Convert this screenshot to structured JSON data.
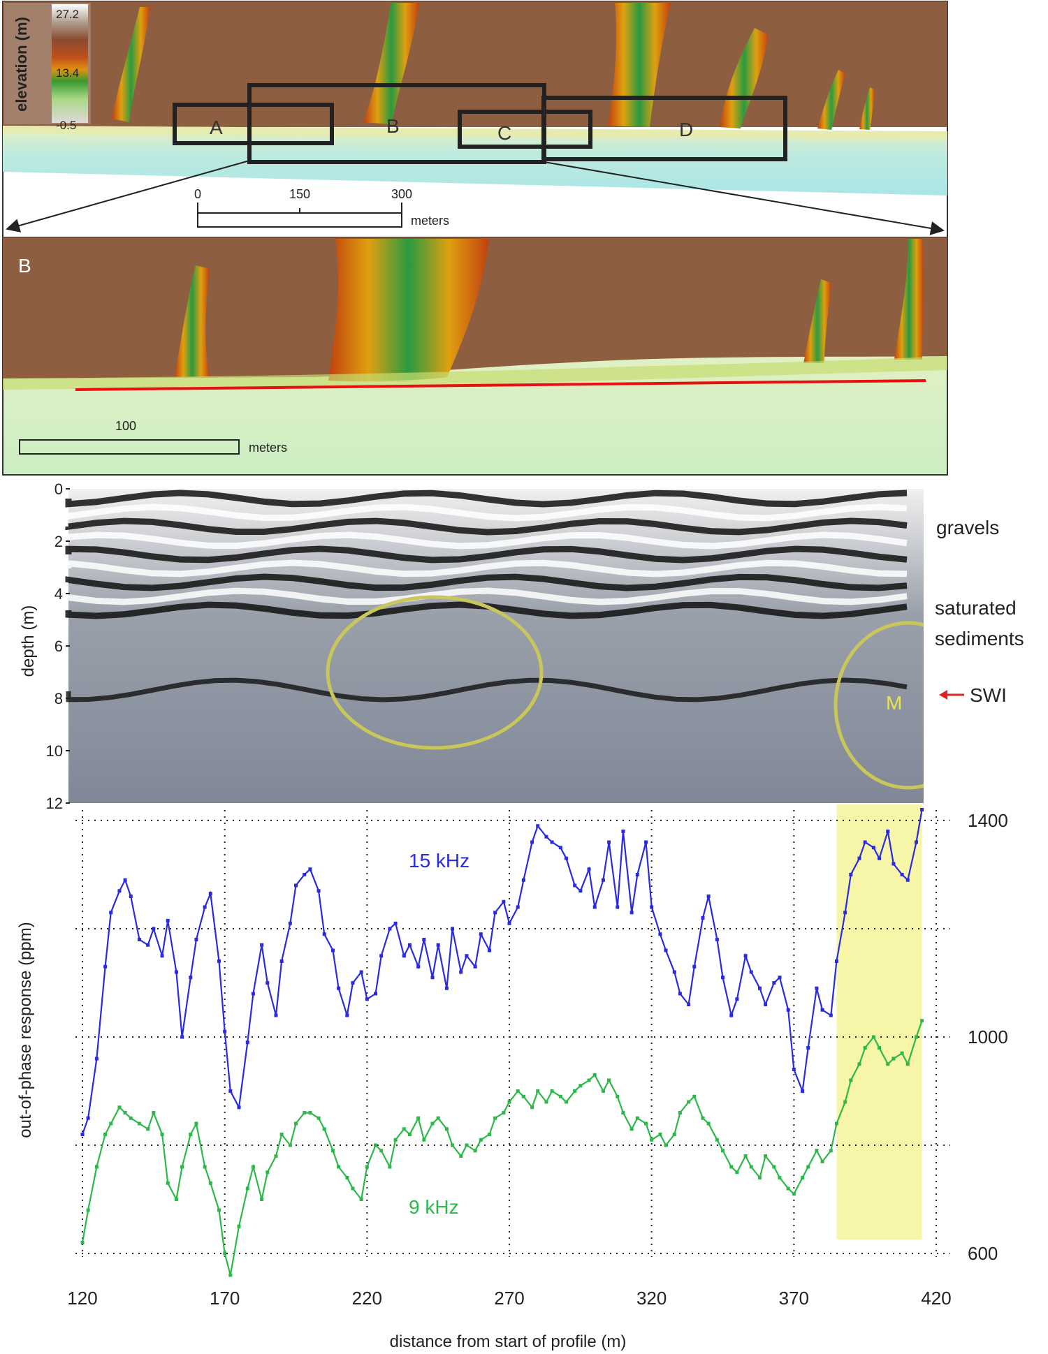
{
  "map_panel": {
    "colorbar": {
      "title": "elevation (m)",
      "max": "27.2",
      "mid": "13.4",
      "min": "-0.5"
    },
    "boxes": [
      "A",
      "B",
      "C",
      "D"
    ],
    "scalebar": {
      "ticks": [
        "0",
        "150",
        "300"
      ],
      "unit": "meters"
    }
  },
  "zoom_panel": {
    "label": "B",
    "scalebar": {
      "tick": "100",
      "unit": "meters"
    }
  },
  "gpr_panel": {
    "ylabel": "depth (m)",
    "yticks": [
      "0",
      "2",
      "4",
      "6",
      "8",
      "10",
      "12"
    ],
    "annotations": {
      "gravels": "gravels",
      "saturated_1": "saturated",
      "saturated_2": "sediments",
      "swi": "SWI",
      "marker": "M"
    }
  },
  "colors": {
    "series_15khz": "#2a2ae0",
    "series_9khz": "#2eb84a",
    "highlight": "#f6f5a8",
    "ellipse": "#c9c65a",
    "swi_arrow": "#e02020"
  },
  "chart_data": {
    "type": "line",
    "xlabel": "distance from start of profile (m)",
    "ylabel": "out-of-phase response (ppm)",
    "xlim": [
      120,
      420
    ],
    "ylim": [
      600,
      1400
    ],
    "xticks": [
      120,
      170,
      220,
      270,
      320,
      370,
      420
    ],
    "yticks": [
      600,
      1000,
      1400
    ],
    "grid": true,
    "highlight_x": [
      385,
      415
    ],
    "series": [
      {
        "name": "15 kHz",
        "x": [
          120,
          122,
          125,
          128,
          130,
          133,
          135,
          137,
          140,
          143,
          145,
          148,
          150,
          153,
          155,
          158,
          160,
          163,
          165,
          168,
          170,
          172,
          175,
          178,
          180,
          183,
          185,
          188,
          190,
          193,
          195,
          198,
          200,
          203,
          205,
          208,
          210,
          213,
          215,
          218,
          220,
          223,
          225,
          228,
          230,
          233,
          235,
          238,
          240,
          243,
          245,
          248,
          250,
          253,
          255,
          258,
          260,
          263,
          265,
          268,
          270,
          273,
          275,
          278,
          280,
          283,
          285,
          288,
          290,
          293,
          295,
          298,
          300,
          303,
          305,
          308,
          310,
          313,
          315,
          318,
          320,
          323,
          325,
          328,
          330,
          333,
          335,
          338,
          340,
          343,
          345,
          348,
          350,
          353,
          355,
          358,
          360,
          363,
          365,
          368,
          370,
          373,
          375,
          378,
          380,
          383,
          385,
          388,
          390,
          393,
          395,
          398,
          400,
          403,
          405,
          408,
          410,
          413,
          415
        ],
        "values": [
          820,
          850,
          960,
          1130,
          1230,
          1270,
          1290,
          1260,
          1180,
          1170,
          1200,
          1150,
          1215,
          1120,
          1000,
          1110,
          1180,
          1240,
          1265,
          1140,
          1010,
          900,
          870,
          990,
          1080,
          1170,
          1100,
          1040,
          1140,
          1210,
          1280,
          1300,
          1310,
          1270,
          1190,
          1160,
          1090,
          1040,
          1100,
          1120,
          1070,
          1080,
          1150,
          1200,
          1210,
          1150,
          1170,
          1130,
          1180,
          1110,
          1170,
          1090,
          1200,
          1120,
          1150,
          1130,
          1190,
          1160,
          1230,
          1250,
          1210,
          1240,
          1290,
          1360,
          1390,
          1370,
          1360,
          1350,
          1330,
          1280,
          1270,
          1310,
          1240,
          1290,
          1360,
          1240,
          1380,
          1230,
          1300,
          1360,
          1240,
          1190,
          1160,
          1120,
          1080,
          1060,
          1130,
          1220,
          1260,
          1180,
          1110,
          1040,
          1070,
          1150,
          1120,
          1090,
          1060,
          1100,
          1110,
          1050,
          940,
          900,
          980,
          1090,
          1050,
          1040,
          1140,
          1230,
          1300,
          1330,
          1360,
          1350,
          1330,
          1380,
          1320,
          1300,
          1290,
          1360,
          1420
        ]
      },
      {
        "name": "9 kHz",
        "x": [
          120,
          122,
          125,
          128,
          130,
          133,
          135,
          137,
          140,
          143,
          145,
          148,
          150,
          153,
          155,
          158,
          160,
          163,
          165,
          168,
          170,
          172,
          175,
          178,
          180,
          183,
          185,
          188,
          190,
          193,
          195,
          198,
          200,
          203,
          205,
          208,
          210,
          213,
          215,
          218,
          220,
          223,
          225,
          228,
          230,
          233,
          235,
          238,
          240,
          243,
          245,
          248,
          250,
          253,
          255,
          258,
          260,
          263,
          265,
          268,
          270,
          273,
          275,
          278,
          280,
          283,
          285,
          288,
          290,
          293,
          295,
          298,
          300,
          303,
          305,
          308,
          310,
          313,
          315,
          318,
          320,
          323,
          325,
          328,
          330,
          333,
          335,
          338,
          340,
          343,
          345,
          348,
          350,
          353,
          355,
          358,
          360,
          363,
          365,
          368,
          370,
          373,
          375,
          378,
          380,
          383,
          385,
          388,
          390,
          393,
          395,
          398,
          400,
          403,
          405,
          408,
          410,
          413,
          415
        ],
        "values": [
          620,
          680,
          760,
          820,
          840,
          870,
          860,
          850,
          840,
          830,
          860,
          820,
          730,
          700,
          760,
          820,
          840,
          760,
          730,
          680,
          600,
          560,
          650,
          720,
          760,
          700,
          750,
          780,
          820,
          800,
          840,
          860,
          860,
          850,
          830,
          790,
          760,
          740,
          720,
          700,
          760,
          800,
          790,
          760,
          810,
          830,
          820,
          850,
          810,
          840,
          850,
          830,
          800,
          780,
          800,
          790,
          810,
          820,
          850,
          860,
          880,
          900,
          890,
          870,
          900,
          880,
          900,
          890,
          880,
          900,
          910,
          920,
          930,
          900,
          920,
          890,
          860,
          830,
          850,
          840,
          810,
          820,
          800,
          820,
          860,
          880,
          890,
          850,
          840,
          810,
          790,
          760,
          750,
          780,
          760,
          740,
          780,
          760,
          740,
          720,
          710,
          740,
          760,
          790,
          770,
          790,
          840,
          880,
          920,
          950,
          980,
          1000,
          980,
          950,
          960,
          970,
          950,
          1000,
          1030
        ]
      }
    ],
    "data_labels": [
      "15 kHz",
      "9 kHz"
    ]
  }
}
